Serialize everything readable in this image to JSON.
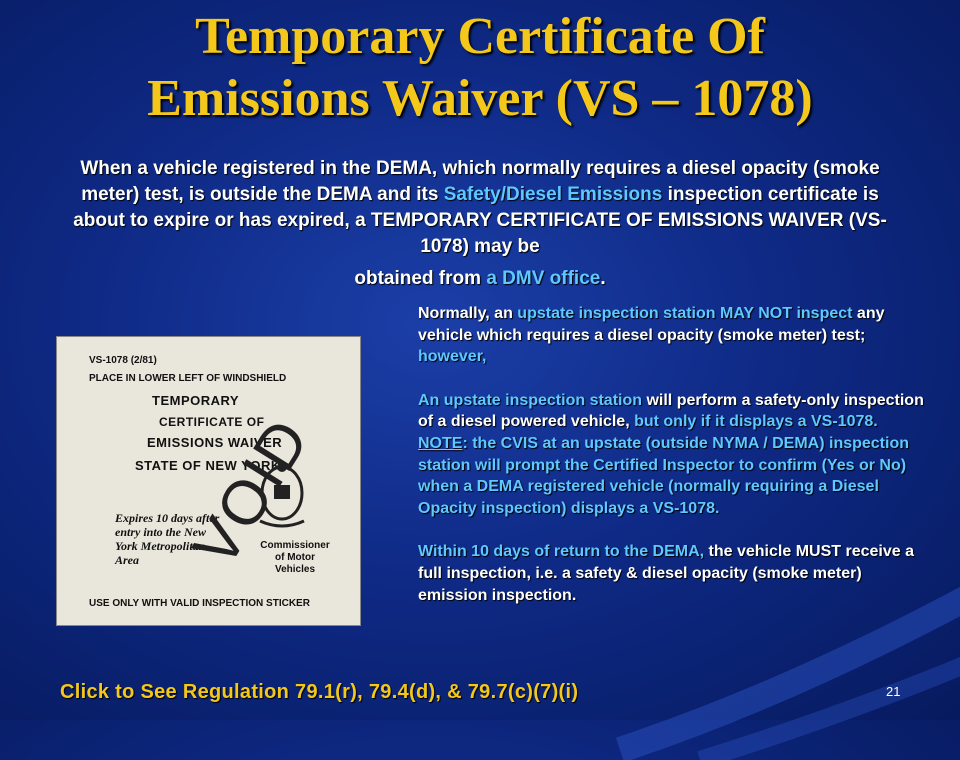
{
  "title": {
    "line1": "Temporary Certificate Of",
    "line2": "Emissions Waiver (VS – 1078)"
  },
  "intro": {
    "p1": "When a vehicle registered in the DEMA, which normally requires a diesel opacity (smoke meter) test, is outside the DEMA and its ",
    "p1_link": "Safety/Diesel Emissions",
    "p1_rest": " inspection certificate is about to expire or has expired, a TEMPORARY CERTIFICATE OF EMISSIONS WAIVER (VS-1078) may be",
    "p2": "obtained from ",
    "p2_link": "a DMV office",
    "p2_end": "."
  },
  "certificate": {
    "form_no": "VS-1078 (2/81)",
    "place": "PLACE IN LOWER LEFT OF WINDSHIELD",
    "line1": "TEMPORARY",
    "line2": "CERTIFICATE OF",
    "line3": "EMISSIONS WAIVER",
    "line4": "STATE OF NEW YORK",
    "expires": "Expires 10 days after entry into the New York Metropolitan Area",
    "commissioner": "Commissioner of Motor Vehicles",
    "footer": "USE ONLY WITH VALID INSPECTION STICKER",
    "stamp": "VOID"
  },
  "right": {
    "p1_a": "Normally, an ",
    "p1_b": "upstate inspection station MAY NOT inspect",
    "p1_c": " any vehicle which requires a diesel opacity (smoke meter) test; ",
    "p1_d": "however,",
    "p2_a": "An  upstate inspection station",
    "p2_b": " will perform  a safety-only inspection of a diesel powered vehicle, ",
    "p2_c": "but only if it displays a VS-1078.  ",
    "p2_note": "NOTE",
    "p2_d": ": the CVIS at an upstate (outside NYMA / DEMA) inspection station will prompt the Certified Inspector  to confirm (Yes or No) when a DEMA registered vehicle  (normally requiring a Diesel Opacity inspection) displays a VS-1078.",
    "p3_a": "Within 10 days of return to the DEMA,",
    "p3_b": " the vehicle MUST receive a full inspection, i.e.  a safety & diesel opacity (smoke meter) emission inspection."
  },
  "regulation_link": "Click to See Regulation 79.1(r), 79.4(d), & 79.7(c)(7)(i)",
  "page_number": "21"
}
